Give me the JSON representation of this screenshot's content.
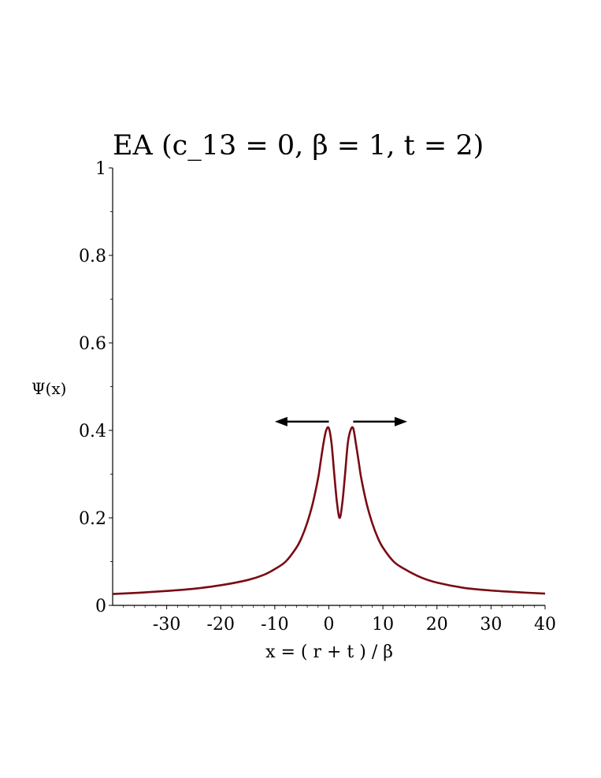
{
  "chart_data": {
    "type": "line",
    "title": "EA  (c_13 = 0, β  = 1,  t = 2)",
    "xlabel": "x = ( r + t ) / β",
    "ylabel": "Ψ(x)",
    "xlim": [
      -40,
      40
    ],
    "ylim": [
      0,
      1
    ],
    "x_ticks": [
      -30,
      -20,
      -10,
      0,
      10,
      20,
      30,
      40
    ],
    "x_tick_labels": [
      "-30",
      "-20",
      "-10",
      "0",
      "10",
      "20",
      "30",
      "40"
    ],
    "y_ticks": [
      0,
      0.2,
      0.4,
      0.6,
      0.8,
      1
    ],
    "y_tick_labels": [
      "0",
      "0.2",
      "0.4",
      "0.6",
      "0.8",
      "1"
    ],
    "grid": false,
    "series": [
      {
        "color": "#7a0a14",
        "x": [
          -40,
          -35,
          -30,
          -25,
          -20,
          -15,
          -12,
          -10,
          -8,
          -6,
          -5,
          -4,
          -3,
          -2,
          -1.5,
          -1,
          -0.5,
          0,
          0.5,
          1,
          1.5,
          2,
          2.5,
          3,
          3.5,
          4,
          4.5,
          5,
          5.5,
          6,
          7,
          8,
          9,
          10,
          12,
          14,
          17,
          20,
          25,
          30,
          35,
          40
        ],
        "y": [
          0.026,
          0.029,
          0.033,
          0.038,
          0.046,
          0.058,
          0.07,
          0.083,
          0.1,
          0.132,
          0.156,
          0.189,
          0.232,
          0.29,
          0.33,
          0.37,
          0.4,
          0.405,
          0.37,
          0.3,
          0.235,
          0.2,
          0.235,
          0.3,
          0.37,
          0.4,
          0.405,
          0.37,
          0.33,
          0.29,
          0.232,
          0.189,
          0.156,
          0.132,
          0.1,
          0.083,
          0.064,
          0.052,
          0.04,
          0.034,
          0.03,
          0.027
        ]
      }
    ],
    "annotations": [
      {
        "type": "arrow",
        "direction": "left",
        "from": [
          0,
          0.42
        ],
        "to": [
          -10,
          0.42
        ],
        "color": "#000000"
      },
      {
        "type": "arrow",
        "direction": "right",
        "from": [
          4.5,
          0.42
        ],
        "to": [
          14.5,
          0.42
        ],
        "color": "#000000"
      }
    ]
  }
}
